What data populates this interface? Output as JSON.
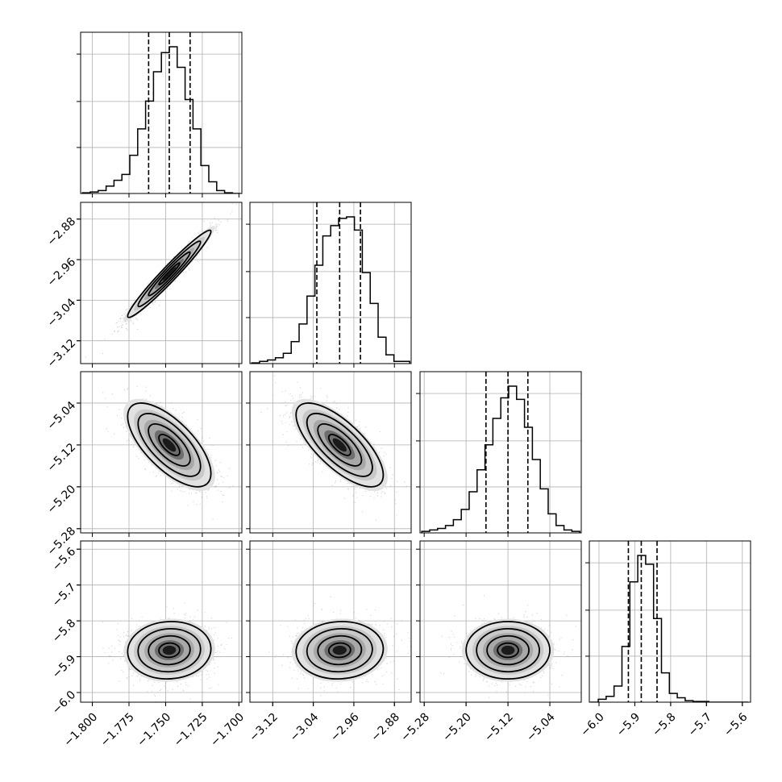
{
  "chart_data": {
    "type": "corner",
    "title": "",
    "parameters": [
      {
        "ticks": [
          -1.8,
          -1.775,
          -1.75,
          -1.725,
          -1.7
        ],
        "tick_labels": [
          "−1.800",
          "−1.775",
          "−1.750",
          "−1.725",
          "−1.700"
        ],
        "range": [
          -1.808,
          -1.698
        ],
        "median": -1.7475,
        "q16": -1.7616,
        "q84": -1.7333,
        "hist": [
          0.005,
          0.01,
          0.02,
          0.05,
          0.09,
          0.13,
          0.26,
          0.44,
          0.63,
          0.83,
          0.96,
          1.0,
          0.86,
          0.64,
          0.44,
          0.19,
          0.08,
          0.02,
          0.005,
          0.0
        ]
      },
      {
        "ticks": [
          -3.12,
          -3.04,
          -2.96,
          -2.88
        ],
        "tick_labels": [
          "−3.12",
          "−3.04",
          "−2.96",
          "−2.88"
        ],
        "range": [
          -3.165,
          -2.847
        ],
        "median": -2.988,
        "q16": -3.033,
        "q84": -2.947,
        "hist": [
          0.005,
          0.015,
          0.025,
          0.04,
          0.07,
          0.15,
          0.27,
          0.46,
          0.67,
          0.87,
          0.94,
          0.99,
          1.0,
          0.91,
          0.62,
          0.41,
          0.18,
          0.06,
          0.015,
          0.015
        ]
      },
      {
        "ticks": [
          -5.28,
          -5.2,
          -5.12,
          -5.04
        ],
        "tick_labels": [
          "−5.28",
          "−5.20",
          "−5.12",
          "−5.04"
        ],
        "range": [
          -5.288,
          -4.98
        ],
        "median": -5.12,
        "q16": -5.162,
        "q84": -5.082,
        "hist": [
          0.01,
          0.02,
          0.03,
          0.05,
          0.09,
          0.16,
          0.28,
          0.43,
          0.6,
          0.78,
          0.92,
          1.0,
          0.91,
          0.72,
          0.5,
          0.3,
          0.13,
          0.05,
          0.02,
          0.01
        ]
      },
      {
        "ticks": [
          -6.0,
          -5.9,
          -5.8,
          -5.7,
          -5.6
        ],
        "tick_labels": [
          "−6.0",
          "−5.9",
          "−5.8",
          "−5.7",
          "−5.6"
        ],
        "range": [
          -6.027,
          -5.577
        ],
        "median": -5.882,
        "q16": -5.918,
        "q84": -5.838,
        "hist": [
          0.0,
          0.02,
          0.04,
          0.11,
          0.38,
          0.82,
          1.0,
          0.94,
          0.57,
          0.2,
          0.06,
          0.03,
          0.01,
          0.005,
          0.005,
          0.0,
          0.0,
          0.0,
          0.0,
          0.0
        ]
      }
    ],
    "pairs": [
      {
        "row": 1,
        "col": 0,
        "center": [
          -1.7475,
          -2.988
        ],
        "sd": [
          0.0142,
          0.043
        ],
        "corr": 0.97
      },
      {
        "row": 2,
        "col": 0,
        "center": [
          -1.7475,
          -5.12
        ],
        "sd": [
          0.0142,
          0.04
        ],
        "corr": -0.68
      },
      {
        "row": 2,
        "col": 1,
        "center": [
          -2.988,
          -5.12
        ],
        "sd": [
          0.043,
          0.04
        ],
        "corr": -0.72
      },
      {
        "row": 3,
        "col": 0,
        "center": [
          -1.7475,
          -5.882
        ],
        "sd": [
          0.0142,
          0.04
        ],
        "corr": 0.05
      },
      {
        "row": 3,
        "col": 1,
        "center": [
          -2.988,
          -5.882
        ],
        "sd": [
          0.043,
          0.04
        ],
        "corr": 0.05
      },
      {
        "row": 3,
        "col": 2,
        "center": [
          -5.12,
          -5.882
        ],
        "sd": [
          0.04,
          0.04
        ],
        "corr": 0.0
      }
    ],
    "grid": true,
    "legend": "none",
    "quantile_lines": "dashed"
  }
}
